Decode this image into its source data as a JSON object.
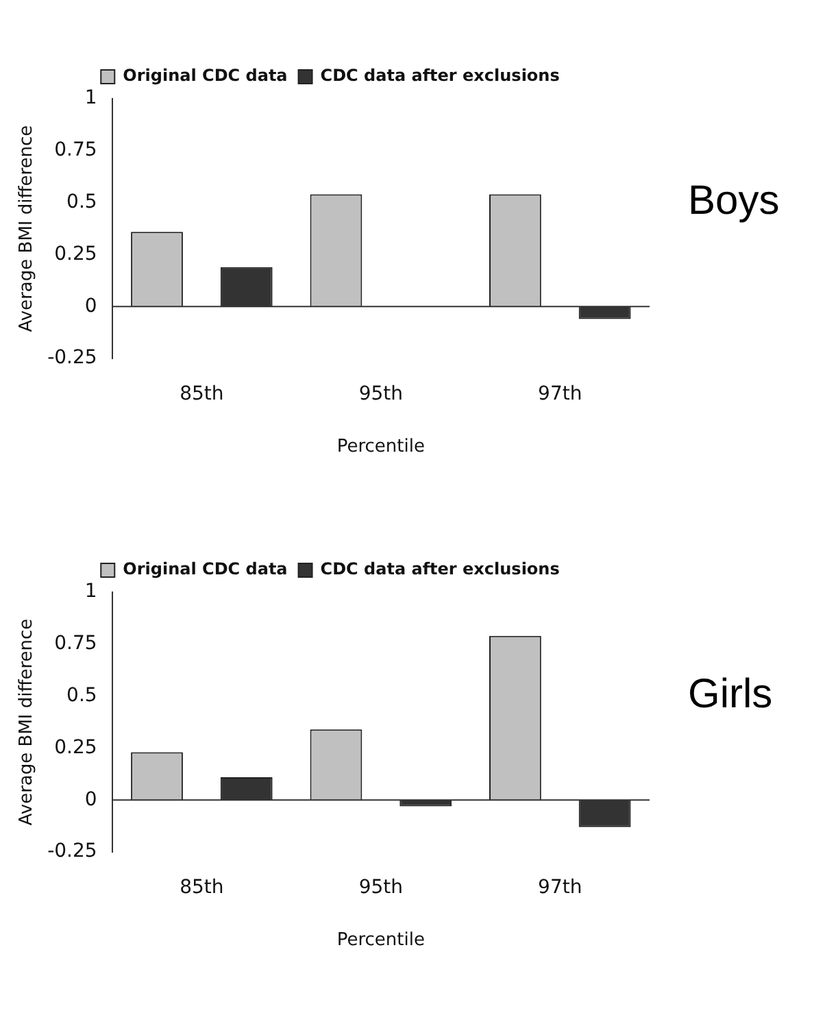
{
  "chart_data": [
    {
      "type": "bar",
      "annotations": [
        "Boys"
      ],
      "xlabel": "Percentile",
      "ylabel": "Average BMI difference",
      "categories": [
        "85th",
        "95th",
        "97th"
      ],
      "series": [
        {
          "name": "Original CDC data",
          "color": "#c0c0c0",
          "values": [
            0.36,
            0.54,
            0.54
          ]
        },
        {
          "name": "CDC data after exclusions",
          "color": "#333333",
          "values": [
            0.19,
            0,
            -0.06
          ]
        }
      ],
      "ylim": [
        -0.25,
        1
      ],
      "yticks": [
        -0.25,
        0,
        0.25,
        0.5,
        0.75,
        1
      ],
      "ref_lines": [
        {
          "axis": "y",
          "value": 0,
          "color": "#333333"
        }
      ],
      "legend": "top"
    },
    {
      "type": "bar",
      "annotations": [
        "Girls"
      ],
      "xlabel": "Percentile",
      "ylabel": "Average BMI difference",
      "categories": [
        "85th",
        "95th",
        "97th"
      ],
      "series": [
        {
          "name": "Original CDC data",
          "color": "#c0c0c0",
          "values": [
            0.23,
            0.34,
            0.79
          ]
        },
        {
          "name": "CDC data after exclusions",
          "color": "#333333",
          "values": [
            0.11,
            -0.03,
            -0.13
          ]
        }
      ],
      "ylim": [
        -0.25,
        1
      ],
      "yticks": [
        -0.25,
        0,
        0.25,
        0.5,
        0.75,
        1
      ],
      "ref_lines": [
        {
          "axis": "y",
          "value": 0,
          "color": "#333333"
        }
      ],
      "legend": "top"
    }
  ]
}
